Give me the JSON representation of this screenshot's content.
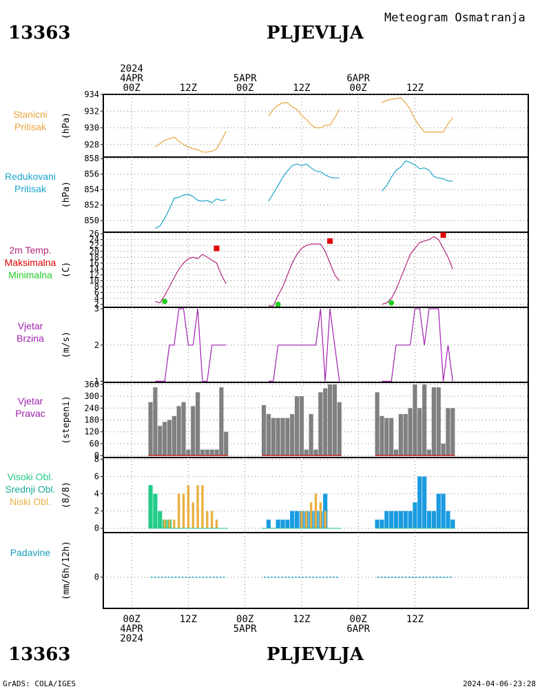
{
  "header": {
    "station_id": "13363",
    "station_name": "PLJEVLJA",
    "product_title": "Meteogram Osmatranja"
  },
  "time_axis": {
    "top_labels": [
      {
        "lines": [
          "2024",
          "4APR",
          "00Z"
        ]
      },
      {
        "lines": [
          "12Z"
        ]
      },
      {
        "lines": [
          "5APR",
          "00Z"
        ]
      },
      {
        "lines": [
          "12Z"
        ]
      },
      {
        "lines": [
          "6APR",
          "00Z"
        ]
      },
      {
        "lines": [
          "12Z"
        ]
      }
    ],
    "bottom_labels": [
      {
        "lines": [
          "00Z",
          "4APR",
          "2024"
        ]
      },
      {
        "lines": [
          "12Z"
        ]
      },
      {
        "lines": [
          "00Z",
          "5APR"
        ]
      },
      {
        "lines": [
          "12Z"
        ]
      },
      {
        "lines": [
          "00Z",
          "6APR"
        ]
      },
      {
        "lines": [
          "12Z"
        ]
      }
    ],
    "hours_range": [
      -6,
      84
    ]
  },
  "footer": {
    "left": "GrADS: COLA/IGES",
    "right": "2024-04-06-23:28"
  },
  "colors": {
    "pressure_station": "#e8a33c",
    "pressure_reduced": "#1aa3cc",
    "temp_line": "#b0247a",
    "temp_max": "#e00000",
    "temp_min": "#22cc22",
    "wind": "#a020b0",
    "wind_dir_bar": "#808080",
    "wind_dir_base": "#cc2222",
    "cloud_high": "#22cc88",
    "cloud_mid": "#1a9be0",
    "cloud_low": "#e8b040",
    "precip": "#1a9bb8"
  },
  "chart_data": [
    {
      "type": "line",
      "panel_labels": [
        "Stanicni",
        "Pritisak"
      ],
      "ylabel": "(hPa)",
      "yticks": [
        "928",
        "930",
        "932",
        "934"
      ],
      "ylim": [
        926.5,
        934
      ],
      "series": [
        {
          "x": [
            5,
            6,
            7,
            8,
            9,
            10,
            11,
            12,
            13,
            14,
            15,
            16,
            17,
            18,
            19,
            20
          ],
          "values": [
            927.7,
            928.1,
            928.5,
            928.7,
            928.9,
            928.4,
            928.0,
            927.7,
            927.5,
            927.4,
            927.1,
            927.1,
            927.2,
            927.5,
            928.5,
            929.6
          ]
        },
        {
          "x": [
            29,
            30,
            31,
            32,
            33,
            34,
            35,
            36,
            37,
            38,
            39,
            40,
            41,
            42,
            43,
            44
          ],
          "values": [
            931.4,
            932.2,
            932.7,
            933.0,
            933.0,
            932.5,
            932.2,
            931.5,
            931.0,
            930.4,
            930.0,
            930.0,
            930.3,
            930.3,
            931.2,
            932.2
          ]
        },
        {
          "x": [
            53,
            54,
            55,
            56,
            57,
            58,
            59,
            60,
            61,
            62,
            63,
            64,
            65,
            66,
            67,
            68
          ],
          "values": [
            933.0,
            933.3,
            933.4,
            933.5,
            933.6,
            933.0,
            932.2,
            931.0,
            930.2,
            929.5,
            929.5,
            929.5,
            929.5,
            929.5,
            930.5,
            931.2
          ]
        }
      ]
    },
    {
      "type": "line",
      "panel_labels": [
        "Redukovani",
        "Pritisak"
      ],
      "ylabel": "(hPa)",
      "yticks": [
        "850",
        "852",
        "854",
        "856",
        "858"
      ],
      "ylim": [
        848.5,
        858.2
      ],
      "series": [
        {
          "x": [
            5,
            6,
            7,
            8,
            9,
            10,
            11,
            12,
            13,
            14,
            15,
            16,
            17,
            18,
            19,
            20
          ],
          "values": [
            849.0,
            849.3,
            850.3,
            851.5,
            852.9,
            853.0,
            853.3,
            853.4,
            853.1,
            852.6,
            852.5,
            852.6,
            852.3,
            852.8,
            852.6,
            852.7
          ]
        },
        {
          "x": [
            29,
            30,
            31,
            32,
            33,
            34,
            35,
            36,
            37,
            38,
            39,
            40,
            41,
            42,
            43,
            44
          ],
          "values": [
            852.5,
            853.5,
            854.5,
            855.6,
            856.4,
            857.1,
            857.3,
            857.1,
            857.3,
            856.8,
            856.4,
            856.3,
            855.9,
            855.6,
            855.5,
            855.5
          ]
        },
        {
          "x": [
            53,
            54,
            55,
            56,
            57,
            58,
            59,
            60,
            61,
            62,
            63,
            64,
            65,
            66,
            67,
            68
          ],
          "values": [
            853.8,
            854.5,
            855.6,
            856.5,
            856.9,
            857.7,
            857.5,
            857.2,
            856.7,
            856.8,
            856.5,
            855.7,
            855.5,
            855.4,
            855.1,
            855.1
          ]
        }
      ]
    },
    {
      "type": "line",
      "panel_labels": [
        "2m Temp.",
        "Maksimalna",
        "Minimalna"
      ],
      "ylabel": "(C)",
      "yticks": [
        "2",
        "4",
        "6",
        "8",
        "10",
        "12",
        "14",
        "16",
        "18",
        "20",
        "22",
        "24",
        "26"
      ],
      "ylim": [
        1,
        26.5
      ],
      "series": [
        {
          "x": [
            5,
            6,
            7,
            8,
            9,
            10,
            11,
            12,
            13,
            14,
            15,
            16,
            17,
            18,
            19,
            20
          ],
          "values": [
            3,
            2.5,
            5,
            8,
            11,
            14,
            16,
            17.5,
            18,
            17.5,
            19,
            18,
            17,
            16,
            12,
            9
          ]
        },
        {
          "x": [
            29,
            30,
            31,
            32,
            33,
            34,
            35,
            36,
            37,
            38,
            39,
            40,
            41,
            42,
            43,
            44
          ],
          "values": [
            1.5,
            1.5,
            5,
            8,
            12,
            16,
            19,
            21,
            22,
            22.5,
            22.5,
            22.5,
            20,
            16,
            12,
            10
          ]
        },
        {
          "x": [
            53,
            54,
            55,
            56,
            57,
            58,
            59,
            60,
            61,
            62,
            63,
            64,
            65,
            66,
            67,
            68
          ],
          "values": [
            2,
            2.5,
            4,
            7,
            11,
            15,
            19,
            21,
            23,
            23.5,
            24,
            25,
            24,
            21,
            18,
            14
          ]
        }
      ],
      "max_points": [
        {
          "x": 18,
          "y": 21
        },
        {
          "x": 42,
          "y": 23.5
        },
        {
          "x": 66,
          "y": 25.5
        }
      ],
      "min_points": [
        {
          "x": 7,
          "y": 3
        },
        {
          "x": 31,
          "y": 2
        },
        {
          "x": 55,
          "y": 2.5
        }
      ]
    },
    {
      "type": "line",
      "panel_labels": [
        "Vjetar",
        "Brzina"
      ],
      "ylabel": "(m/s)",
      "yticks": [
        "1",
        "2",
        "3"
      ],
      "ylim": [
        0.97,
        3.04
      ],
      "series": [
        {
          "x": [
            5,
            6,
            7,
            8,
            9,
            10,
            11,
            12,
            13,
            14,
            15,
            16,
            17,
            18,
            19,
            20
          ],
          "values": [
            1,
            1,
            1,
            2,
            2,
            3,
            3,
            2,
            2,
            3,
            1,
            1,
            2,
            2,
            2,
            2
          ]
        },
        {
          "x": [
            29,
            30,
            31,
            32,
            33,
            34,
            35,
            36,
            37,
            38,
            39,
            40,
            41,
            42,
            43,
            44
          ],
          "values": [
            1,
            1,
            2,
            2,
            2,
            2,
            2,
            2,
            2,
            2,
            2,
            3,
            1,
            3,
            2,
            1
          ]
        },
        {
          "x": [
            53,
            54,
            55,
            56,
            57,
            58,
            59,
            60,
            61,
            62,
            63,
            64,
            65,
            66,
            67,
            68
          ],
          "values": [
            1,
            1,
            1,
            2,
            2,
            2,
            2,
            3,
            3,
            2,
            3,
            3,
            3,
            1,
            2,
            1
          ]
        }
      ]
    },
    {
      "type": "bar",
      "panel_labels": [
        "Vjetar",
        "Pravac"
      ],
      "ylabel": "(stepeni)",
      "yticks": [
        "0",
        "60",
        "120",
        "180",
        "240",
        "300",
        "360"
      ],
      "ylim": [
        -10,
        370
      ],
      "x": [
        4,
        5,
        6,
        7,
        8,
        9,
        10,
        11,
        12,
        13,
        14,
        15,
        16,
        17,
        18,
        19,
        20,
        28,
        29,
        30,
        31,
        32,
        33,
        34,
        35,
        36,
        37,
        38,
        39,
        40,
        41,
        42,
        43,
        44,
        52,
        53,
        54,
        55,
        56,
        57,
        58,
        59,
        60,
        61,
        62,
        63,
        64,
        65,
        66,
        67,
        68
      ],
      "values": [
        270,
        345,
        150,
        170,
        180,
        200,
        250,
        270,
        30,
        250,
        320,
        30,
        30,
        30,
        30,
        345,
        120,
        255,
        210,
        190,
        190,
        190,
        190,
        210,
        300,
        300,
        30,
        210,
        30,
        320,
        340,
        360,
        360,
        270,
        320,
        200,
        190,
        190,
        30,
        210,
        210,
        240,
        360,
        240,
        360,
        30,
        345,
        345,
        60,
        240,
        240
      ]
    },
    {
      "type": "bar",
      "panel_labels": [
        "Visoki Obl.",
        "Srednji Obl.",
        "Niski Obl."
      ],
      "ylabel": "(8/8)",
      "yticks": [
        "0",
        "2",
        "4",
        "6",
        "8"
      ],
      "ylim": [
        -0.5,
        8.2
      ],
      "x": [
        4,
        5,
        6,
        7,
        8,
        9,
        10,
        11,
        12,
        13,
        14,
        15,
        16,
        17,
        18,
        19,
        20,
        28,
        29,
        30,
        31,
        32,
        33,
        34,
        35,
        36,
        37,
        38,
        39,
        40,
        41,
        42,
        43,
        44,
        52,
        53,
        54,
        55,
        56,
        57,
        58,
        59,
        60,
        61,
        62,
        63,
        64,
        65,
        66,
        67,
        68
      ],
      "series": [
        {
          "name": "Visoki Obl.",
          "values": [
            5,
            4,
            2,
            1,
            1,
            0,
            0,
            0,
            0,
            0,
            0,
            0,
            0,
            0,
            0,
            0,
            0,
            0,
            0,
            0,
            0,
            0,
            0,
            0,
            0,
            0,
            0,
            0,
            0,
            0,
            0,
            0,
            0,
            0,
            0,
            0,
            0,
            0,
            0,
            0,
            0,
            0,
            0,
            0,
            0,
            0,
            0,
            0,
            0,
            0,
            1
          ]
        },
        {
          "name": "Srednji Obl.",
          "values": [
            0,
            0,
            0,
            0,
            0,
            0,
            0,
            0,
            0,
            0,
            0,
            0,
            0,
            0,
            0,
            0,
            0,
            0,
            1,
            0,
            1,
            1,
            1,
            2,
            2,
            2,
            2,
            2,
            2,
            2,
            4,
            0,
            0,
            0,
            1,
            1,
            2,
            2,
            2,
            2,
            2,
            2,
            3,
            6,
            6,
            2,
            2,
            4,
            4,
            2,
            1
          ]
        },
        {
          "name": "Niski Obl.",
          "values": [
            0,
            0,
            0,
            1,
            1,
            1,
            4,
            4,
            5,
            3,
            5,
            5,
            2,
            2,
            1,
            0,
            0,
            0,
            0,
            0,
            0,
            0,
            0,
            0,
            0,
            2,
            2,
            3,
            4,
            3,
            2,
            0,
            0,
            0,
            0,
            0,
            0,
            0,
            0,
            0,
            0,
            0,
            0,
            0,
            0,
            0,
            0,
            0,
            0,
            0,
            0
          ]
        }
      ]
    },
    {
      "type": "line",
      "panel_labels": [
        "Padavine"
      ],
      "ylabel": "(mm/6h/12h)",
      "yticks": [
        "0"
      ],
      "ylim": [
        -0.7,
        1.0
      ],
      "series": [
        {
          "x": [
            4,
            5,
            6,
            7,
            8,
            9,
            10,
            11,
            12,
            13,
            14,
            15,
            16,
            17,
            18,
            19,
            20
          ],
          "values": [
            0,
            0,
            0,
            0,
            0,
            0,
            0,
            0,
            0,
            0,
            0,
            0,
            0,
            0,
            0,
            0,
            0
          ]
        },
        {
          "x": [
            28,
            29,
            30,
            31,
            32,
            33,
            34,
            35,
            36,
            37,
            38,
            39,
            40,
            41,
            42,
            43,
            44
          ],
          "values": [
            0,
            0,
            0,
            0,
            0,
            0,
            0,
            0,
            0,
            0,
            0,
            0,
            0,
            0,
            0,
            0,
            0
          ]
        },
        {
          "x": [
            52,
            53,
            54,
            55,
            56,
            57,
            58,
            59,
            60,
            61,
            62,
            63,
            64,
            65,
            66,
            67,
            68
          ],
          "values": [
            0,
            0,
            0,
            0,
            0,
            0,
            0,
            0,
            0,
            0,
            0,
            0,
            0,
            0,
            0,
            0,
            0
          ]
        }
      ]
    }
  ]
}
